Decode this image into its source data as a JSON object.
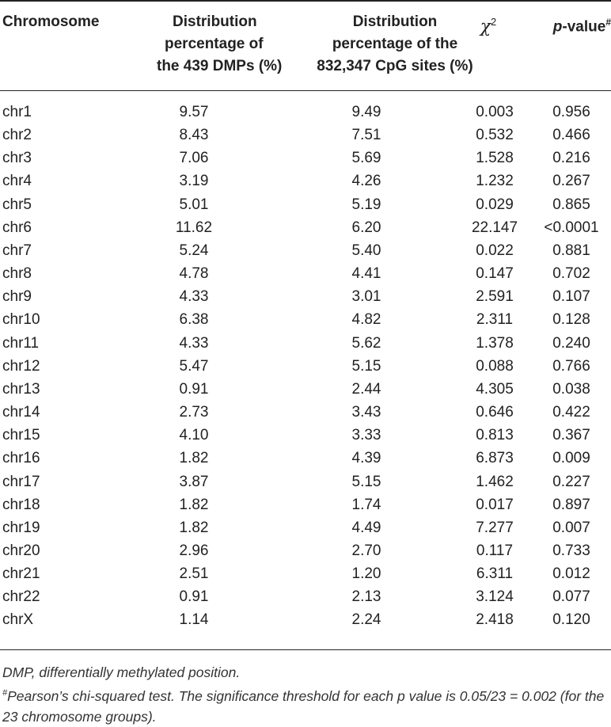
{
  "table": {
    "headers": {
      "chromosome": "Chromosome",
      "dmp_line1": "Distribution",
      "dmp_line2": "percentage of",
      "dmp_line3": "the 439 DMPs (%)",
      "cpg_line1": "Distribution",
      "cpg_line2": "percentage of the",
      "cpg_line3": "832,347 CpG sites (%)",
      "chi_symbol": "χ",
      "chi_sup": "2",
      "p_italic": "p",
      "p_rest": "-value",
      "p_sup": "#"
    },
    "rows": [
      {
        "chrom": "chr1",
        "dmp": "9.57",
        "cpg": "9.49",
        "chi": "0.003",
        "p": "0.956"
      },
      {
        "chrom": "chr2",
        "dmp": "8.43",
        "cpg": "7.51",
        "chi": "0.532",
        "p": "0.466"
      },
      {
        "chrom": "chr3",
        "dmp": "7.06",
        "cpg": "5.69",
        "chi": "1.528",
        "p": "0.216"
      },
      {
        "chrom": "chr4",
        "dmp": "3.19",
        "cpg": "4.26",
        "chi": "1.232",
        "p": "0.267"
      },
      {
        "chrom": "chr5",
        "dmp": "5.01",
        "cpg": "5.19",
        "chi": "0.029",
        "p": "0.865"
      },
      {
        "chrom": "chr6",
        "dmp": "11.62",
        "cpg": "6.20",
        "chi": "22.147",
        "p": "<0.0001"
      },
      {
        "chrom": "chr7",
        "dmp": "5.24",
        "cpg": "5.40",
        "chi": "0.022",
        "p": "0.881"
      },
      {
        "chrom": "chr8",
        "dmp": "4.78",
        "cpg": "4.41",
        "chi": "0.147",
        "p": "0.702"
      },
      {
        "chrom": "chr9",
        "dmp": "4.33",
        "cpg": "3.01",
        "chi": "2.591",
        "p": "0.107"
      },
      {
        "chrom": "chr10",
        "dmp": "6.38",
        "cpg": "4.82",
        "chi": "2.311",
        "p": "0.128"
      },
      {
        "chrom": "chr11",
        "dmp": "4.33",
        "cpg": "5.62",
        "chi": "1.378",
        "p": "0.240"
      },
      {
        "chrom": "chr12",
        "dmp": "5.47",
        "cpg": "5.15",
        "chi": "0.088",
        "p": "0.766"
      },
      {
        "chrom": "chr13",
        "dmp": "0.91",
        "cpg": "2.44",
        "chi": "4.305",
        "p": "0.038"
      },
      {
        "chrom": "chr14",
        "dmp": "2.73",
        "cpg": "3.43",
        "chi": "0.646",
        "p": "0.422"
      },
      {
        "chrom": "chr15",
        "dmp": "4.10",
        "cpg": "3.33",
        "chi": "0.813",
        "p": "0.367"
      },
      {
        "chrom": "chr16",
        "dmp": "1.82",
        "cpg": "4.39",
        "chi": "6.873",
        "p": "0.009"
      },
      {
        "chrom": "chr17",
        "dmp": "3.87",
        "cpg": "5.15",
        "chi": "1.462",
        "p": "0.227"
      },
      {
        "chrom": "chr18",
        "dmp": "1.82",
        "cpg": "1.74",
        "chi": "0.017",
        "p": "0.897"
      },
      {
        "chrom": "chr19",
        "dmp": "1.82",
        "cpg": "4.49",
        "chi": "7.277",
        "p": "0.007"
      },
      {
        "chrom": "chr20",
        "dmp": "2.96",
        "cpg": "2.70",
        "chi": "0.117",
        "p": "0.733"
      },
      {
        "chrom": "chr21",
        "dmp": "2.51",
        "cpg": "1.20",
        "chi": "6.311",
        "p": "0.012"
      },
      {
        "chrom": "chr22",
        "dmp": "0.91",
        "cpg": "2.13",
        "chi": "3.124",
        "p": "0.077"
      },
      {
        "chrom": "chrX",
        "dmp": "1.14",
        "cpg": "2.24",
        "chi": "2.418",
        "p": "0.120"
      }
    ]
  },
  "footnotes": {
    "abbrev": "DMP, differentially methylated position.",
    "note_marker": "#",
    "note_text": "Pearson’s chi-squared test. The significance threshold for each p value is 0.05/23 = 0.002 (for the 23 chromosome groups)."
  }
}
